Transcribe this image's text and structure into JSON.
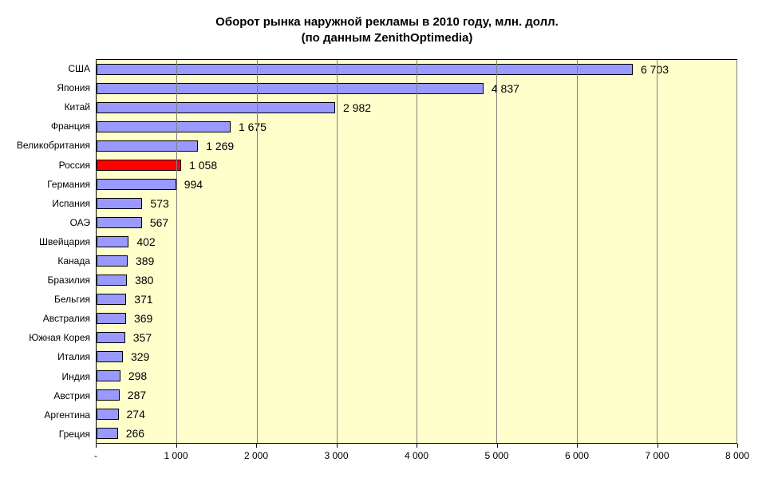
{
  "chart_data": {
    "type": "bar",
    "orientation": "horizontal",
    "title": "Оборот рынка наружной рекламы в 2010 году, млн. долл.",
    "subtitle": "(по данным ZenithOptimedia)",
    "categories": [
      "США",
      "Япония",
      "Китай",
      "Франция",
      "Великобритания",
      "Россия",
      "Германия",
      "Испания",
      "ОАЭ",
      "Швейцария",
      "Канада",
      "Бразилия",
      "Бельгия",
      "Австралия",
      "Южная Корея",
      "Италия",
      "Индия",
      "Австрия",
      "Аргентина",
      "Греция"
    ],
    "values": [
      6703,
      4837,
      2982,
      1675,
      1269,
      1058,
      994,
      573,
      567,
      402,
      389,
      380,
      371,
      369,
      357,
      329,
      298,
      287,
      274,
      266
    ],
    "value_labels": [
      "6 703",
      "4 837",
      "2 982",
      "1 675",
      "1 269",
      "1 058",
      "994",
      "573",
      "567",
      "402",
      "389",
      "380",
      "371",
      "369",
      "357",
      "329",
      "298",
      "287",
      "274",
      "266"
    ],
    "highlight_category": "Россия",
    "xlim": [
      0,
      8000
    ],
    "x_tick_step": 1000,
    "x_ticks": [
      "-",
      "1 000",
      "2 000",
      "3 000",
      "4 000",
      "5 000",
      "6 000",
      "7 000",
      "8 000"
    ],
    "grid": "vertical",
    "legend": "none",
    "colors": {
      "bar": "#9999FF",
      "highlight": "#FF0000",
      "bar_border": "#000000",
      "plot_bg": "#FFFFCC",
      "gridline": "#808080",
      "page_bg": "#FFFFFF"
    }
  }
}
